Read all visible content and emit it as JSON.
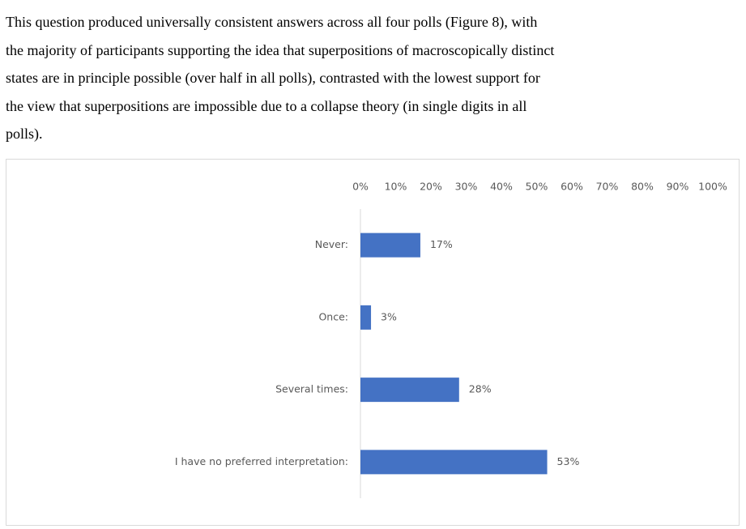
{
  "paragraph": [
    "This question produced universally consistent answers across all four polls (Figure 8), with",
    "the majority of participants supporting the idea that superpositions of macroscopically distinct",
    "states are in principle possible (over half in all polls), contrasted with the lowest support for",
    "the view that superpositions are impossible due to a collapse theory (in single digits in all",
    "polls)."
  ],
  "chart_data": {
    "type": "bar",
    "orientation": "horizontal",
    "categories": [
      "Never:",
      "Once:",
      "Several times:",
      "I have no preferred interpretation:"
    ],
    "values": [
      17,
      3,
      28,
      53
    ],
    "value_labels": [
      "17%",
      "3%",
      "28%",
      "53%"
    ],
    "color": "#4472c4",
    "xlim": [
      0,
      100
    ],
    "xticks": [
      {
        "value": 0,
        "label": "0%"
      },
      {
        "value": 10,
        "label": "10%"
      },
      {
        "value": 20,
        "label": "20%"
      },
      {
        "value": 30,
        "label": "30%"
      },
      {
        "value": 40,
        "label": "40%"
      },
      {
        "value": 50,
        "label": "50%"
      },
      {
        "value": 60,
        "label": "60%"
      },
      {
        "value": 70,
        "label": "70%"
      },
      {
        "value": 80,
        "label": "80%"
      },
      {
        "value": 90,
        "label": "90%"
      },
      {
        "value": 100,
        "label": "100%"
      }
    ],
    "xaxis_position": "top"
  }
}
